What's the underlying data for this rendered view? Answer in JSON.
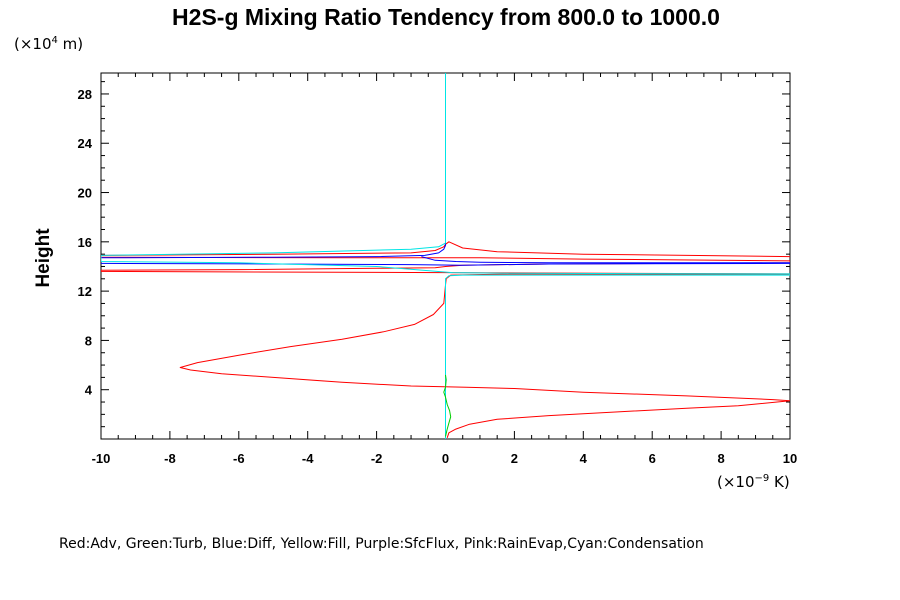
{
  "chart_data": {
    "type": "line",
    "title": "H2S-g Mixing Ratio Tendency from 800.0 to 1000.0",
    "ylabel": "Height",
    "y_unit_prefix": "(×10",
    "y_unit_exp": "4",
    "y_unit_suffix": " m)",
    "x_unit_prefix": "(×10",
    "x_unit_exp": "−9",
    "x_unit_suffix": " K)",
    "xlim": [
      -10,
      10
    ],
    "ylim": [
      0,
      29.7
    ],
    "x_ticks": [
      -10,
      -8,
      -6,
      -4,
      -2,
      0,
      2,
      4,
      6,
      8,
      10
    ],
    "x_tick_labels": [
      "-10",
      "-8",
      "-6",
      "-4",
      "-2",
      "0",
      "2",
      "4",
      "6",
      "8",
      "10"
    ],
    "y_ticks": [
      4,
      8,
      12,
      16,
      20,
      24,
      28
    ],
    "y_tick_labels": [
      "4",
      "8",
      "12",
      "16",
      "20",
      "24",
      "28"
    ],
    "legend": "Red:Adv, Green:Turb, Blue:Diff, Yellow:Fill, Purple:SfcFlux, Pink:RainEvap,Cyan:Condensation",
    "series": [
      {
        "name": "Adv",
        "color": "#ff0000",
        "points": [
          [
            0.05,
            0.1
          ],
          [
            0.1,
            0.5
          ],
          [
            0.3,
            0.8
          ],
          [
            0.7,
            1.2
          ],
          [
            1.5,
            1.6
          ],
          [
            3,
            1.9
          ],
          [
            5,
            2.2
          ],
          [
            7,
            2.5
          ],
          [
            8.5,
            2.7
          ],
          [
            10,
            3.1
          ],
          [
            9.5,
            3.2
          ],
          [
            7,
            3.5
          ],
          [
            4,
            3.8
          ],
          [
            2,
            4.1
          ],
          [
            0.6,
            4.2
          ],
          [
            -1,
            4.3
          ],
          [
            -3,
            4.6
          ],
          [
            -5,
            5.0
          ],
          [
            -6.5,
            5.3
          ],
          [
            -7.4,
            5.6
          ],
          [
            -7.7,
            5.8
          ],
          [
            -7.2,
            6.2
          ],
          [
            -6,
            6.8
          ],
          [
            -4.5,
            7.5
          ],
          [
            -3,
            8.1
          ],
          [
            -1.8,
            8.7
          ],
          [
            -0.9,
            9.3
          ],
          [
            -0.35,
            10.1
          ],
          [
            -0.05,
            11.0
          ],
          [
            0,
            12.5
          ],
          [
            0.02,
            13.0
          ],
          [
            0.15,
            13.3
          ],
          [
            2,
            13.4
          ],
          [
            6,
            13.35
          ],
          [
            10,
            13.35
          ],
          [
            10,
            13.4
          ],
          [
            -10,
            13.6
          ],
          [
            -10,
            13.7
          ],
          [
            -6,
            13.75
          ],
          [
            -2,
            13.85
          ],
          [
            -0.3,
            13.9
          ],
          [
            0,
            14.0
          ],
          [
            0.5,
            14.1
          ],
          [
            3,
            14.2
          ],
          [
            10,
            14.3
          ],
          [
            10,
            14.45
          ],
          [
            4,
            14.6
          ],
          [
            1,
            14.7
          ],
          [
            -3,
            14.7
          ],
          [
            -10,
            14.75
          ],
          [
            -10,
            14.9
          ],
          [
            -5,
            15.0
          ],
          [
            -1,
            15.1
          ],
          [
            -0.3,
            15.3
          ],
          [
            -0.05,
            15.6
          ],
          [
            0,
            15.8
          ],
          [
            0.1,
            16.0
          ],
          [
            0.5,
            15.5
          ],
          [
            1.5,
            15.2
          ],
          [
            4,
            15.0
          ],
          [
            10,
            14.8
          ]
        ]
      },
      {
        "name": "Diff",
        "color": "#0000ff",
        "points": [
          [
            -10,
            14.7
          ],
          [
            -5,
            14.75
          ],
          [
            -2,
            14.8
          ],
          [
            -0.6,
            14.9
          ],
          [
            -0.2,
            15.1
          ],
          [
            -0.05,
            15.4
          ],
          [
            0,
            15.7
          ],
          [
            0,
            16.0
          ]
        ]
      },
      {
        "name": "Diff-core",
        "color": "#0000ff",
        "points": [
          [
            -0.7,
            14.8
          ],
          [
            -0.3,
            14.5
          ],
          [
            0.3,
            14.4
          ],
          [
            1,
            14.35
          ],
          [
            3,
            14.3
          ],
          [
            10,
            14.3
          ],
          [
            10,
            14.25
          ],
          [
            3,
            14.2
          ],
          [
            0.5,
            14.1
          ],
          [
            -1,
            14.15
          ],
          [
            -5,
            14.2
          ],
          [
            -10,
            14.25
          ]
        ]
      },
      {
        "name": "Condensation",
        "color": "#00e5e5",
        "points": [
          [
            0,
            0
          ],
          [
            0,
            13.0
          ],
          [
            0.1,
            13.25
          ],
          [
            0.5,
            13.3
          ],
          [
            4,
            13.3
          ],
          [
            10,
            13.3
          ],
          [
            10,
            13.4
          ],
          [
            2,
            13.45
          ],
          [
            0.2,
            13.5
          ],
          [
            -2,
            14.0
          ],
          [
            -6,
            14.3
          ],
          [
            -10,
            14.4
          ],
          [
            -10,
            14.75
          ],
          [
            -10,
            14.9
          ],
          [
            -5,
            15.1
          ],
          [
            -1,
            15.4
          ],
          [
            -0.2,
            15.6
          ],
          [
            0,
            15.9
          ],
          [
            0,
            29.7
          ]
        ]
      },
      {
        "name": "Turb",
        "color": "#00cc00",
        "points": [
          [
            0,
            0.2
          ],
          [
            0.05,
            0.8
          ],
          [
            0.1,
            1.3
          ],
          [
            0.15,
            1.8
          ],
          [
            0.12,
            2.3
          ],
          [
            0.05,
            2.8
          ],
          [
            0.0,
            3.4
          ],
          [
            -0.05,
            3.8
          ],
          [
            0.0,
            4.2
          ],
          [
            0.02,
            4.8
          ],
          [
            0,
            5.2
          ]
        ]
      }
    ]
  }
}
